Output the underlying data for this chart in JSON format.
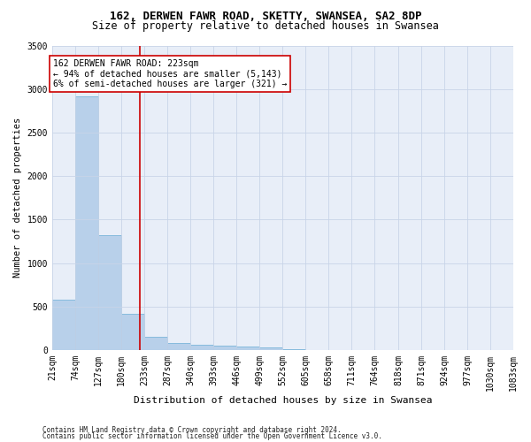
{
  "title1": "162, DERWEN FAWR ROAD, SKETTY, SWANSEA, SA2 8DP",
  "title2": "Size of property relative to detached houses in Swansea",
  "xlabel": "Distribution of detached houses by size in Swansea",
  "ylabel": "Number of detached properties",
  "footer1": "Contains HM Land Registry data © Crown copyright and database right 2024.",
  "footer2": "Contains public sector information licensed under the Open Government Licence v3.0.",
  "bin_edges": [
    21,
    74,
    127,
    180,
    233,
    287,
    340,
    393,
    446,
    499,
    552,
    605,
    658,
    711,
    764,
    818,
    871,
    924,
    977,
    1030,
    1083
  ],
  "bar_heights": [
    575,
    2920,
    1320,
    415,
    155,
    80,
    65,
    55,
    45,
    35,
    5,
    2,
    1,
    1,
    1,
    0,
    0,
    0,
    0,
    0
  ],
  "bar_color": "#b8d0ea",
  "bar_edgecolor": "#6aaed6",
  "grid_color": "#c8d4e8",
  "bg_color": "#e8eef8",
  "property_size": 223,
  "vline_color": "#cc0000",
  "annotation_text": "162 DERWEN FAWR ROAD: 223sqm\n← 94% of detached houses are smaller (5,143)\n6% of semi-detached houses are larger (321) →",
  "annotation_box_color": "#cc0000",
  "ylim": [
    0,
    3500
  ],
  "yticks": [
    0,
    500,
    1000,
    1500,
    2000,
    2500,
    3000,
    3500
  ],
  "title1_fontsize": 9,
  "title2_fontsize": 8.5,
  "xlabel_fontsize": 8,
  "ylabel_fontsize": 7.5,
  "tick_fontsize": 7,
  "annotation_fontsize": 7,
  "footer_fontsize": 5.5
}
